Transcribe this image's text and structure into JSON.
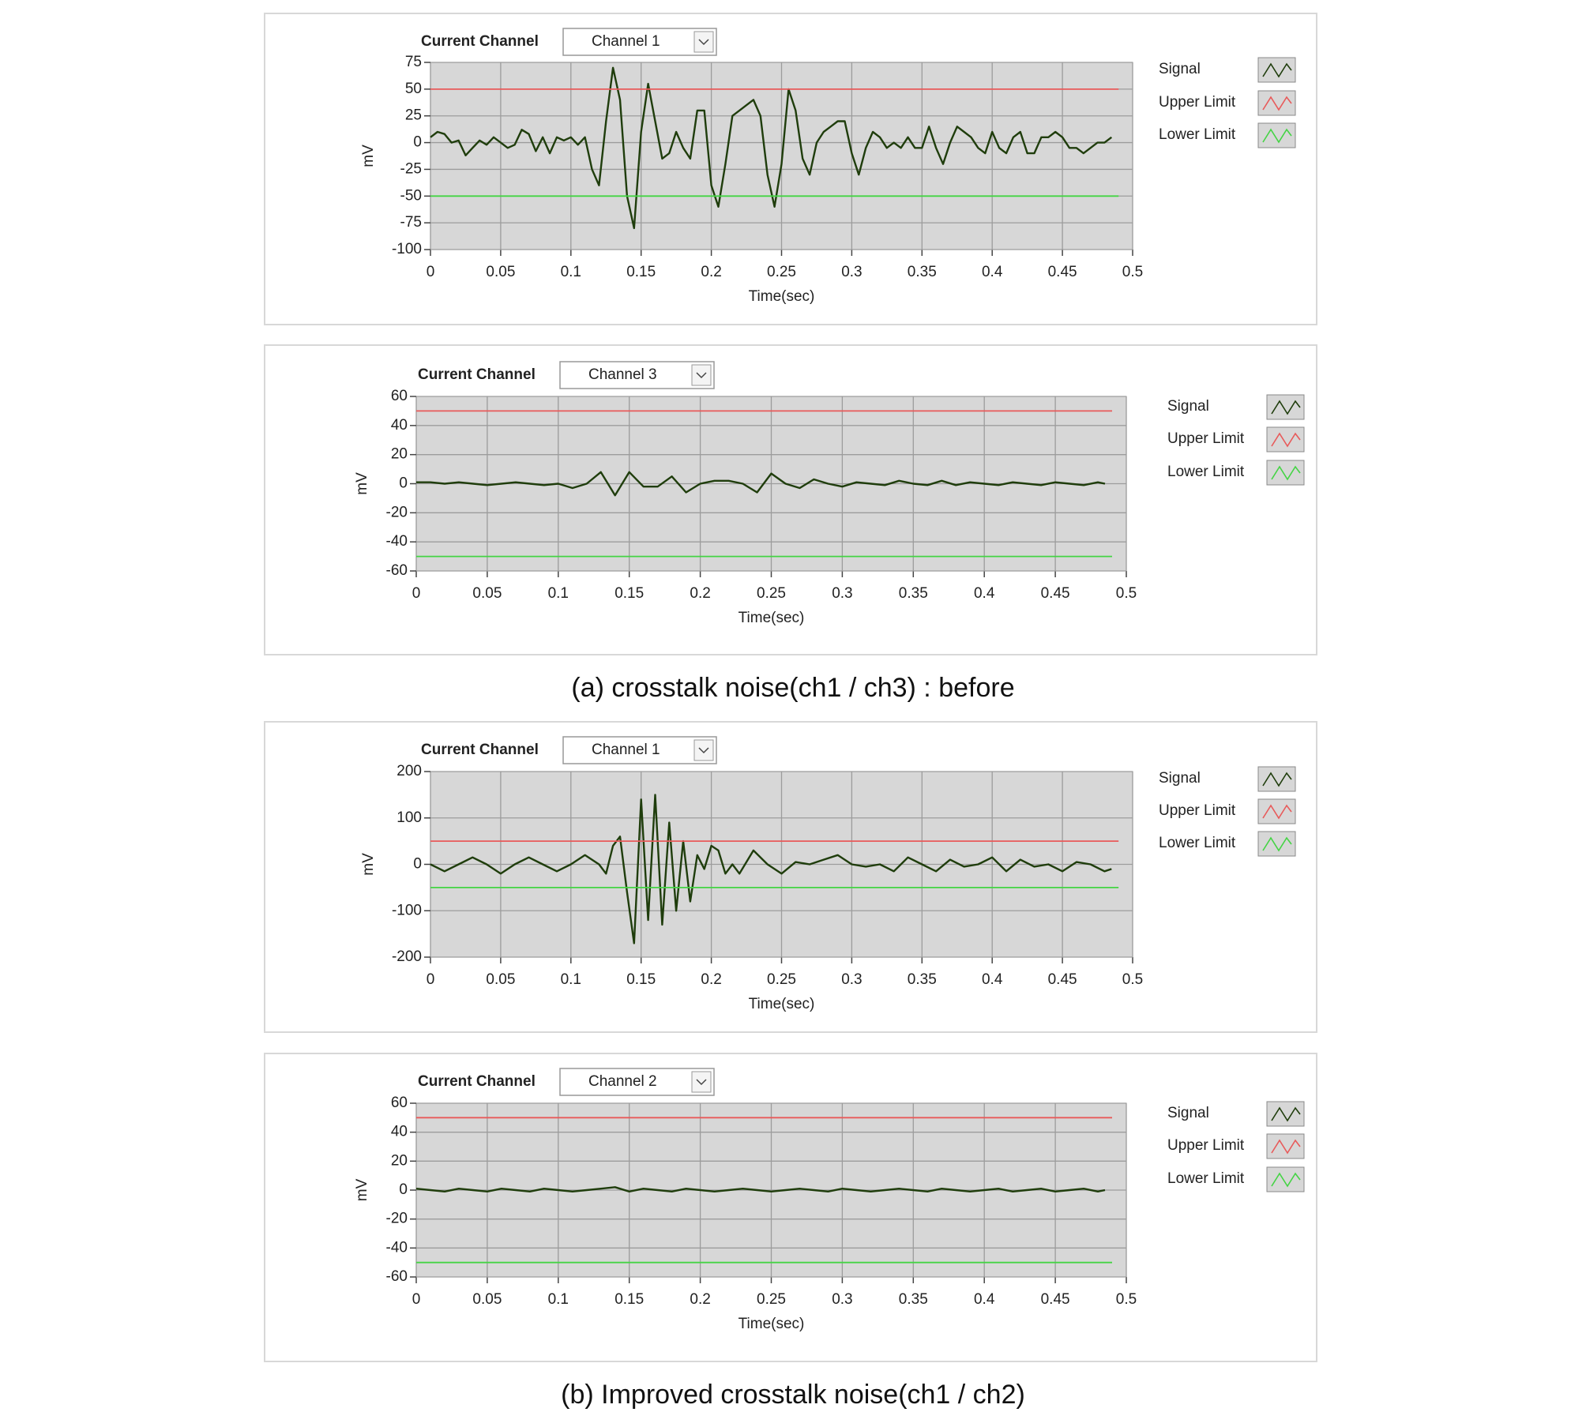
{
  "chart_data": [
    {
      "type": "line",
      "control_label": "Current Channel",
      "channel": "Channel 1",
      "ylabel": "mV",
      "xlabel": "Time(sec)",
      "xlim": [
        0,
        0.5
      ],
      "xticks": [
        0,
        0.05,
        0.1,
        0.15,
        0.2,
        0.25,
        0.3,
        0.35,
        0.4,
        0.45,
        0.5
      ],
      "ylim": [
        -100,
        75
      ],
      "yticks": [
        75,
        50,
        25,
        0,
        -25,
        -50,
        -75,
        -100
      ],
      "grid": true,
      "x": [
        0,
        0.005,
        0.01,
        0.015,
        0.02,
        0.025,
        0.03,
        0.035,
        0.04,
        0.045,
        0.05,
        0.055,
        0.06,
        0.065,
        0.07,
        0.075,
        0.08,
        0.085,
        0.09,
        0.095,
        0.1,
        0.105,
        0.11,
        0.115,
        0.12,
        0.125,
        0.13,
        0.135,
        0.14,
        0.145,
        0.15,
        0.155,
        0.16,
        0.165,
        0.17,
        0.175,
        0.18,
        0.185,
        0.19,
        0.195,
        0.2,
        0.205,
        0.21,
        0.215,
        0.22,
        0.225,
        0.23,
        0.235,
        0.24,
        0.245,
        0.25,
        0.255,
        0.26,
        0.265,
        0.27,
        0.275,
        0.28,
        0.285,
        0.29,
        0.295,
        0.3,
        0.305,
        0.31,
        0.315,
        0.32,
        0.325,
        0.33,
        0.335,
        0.34,
        0.345,
        0.35,
        0.355,
        0.36,
        0.365,
        0.37,
        0.375,
        0.38,
        0.385,
        0.39,
        0.395,
        0.4,
        0.405,
        0.41,
        0.415,
        0.42,
        0.425,
        0.43,
        0.435,
        0.44,
        0.445,
        0.45,
        0.455,
        0.46,
        0.465,
        0.47,
        0.475,
        0.48,
        0.485
      ],
      "series": [
        {
          "name": "Signal",
          "color": "#1f3d0c",
          "values": [
            5,
            10,
            8,
            0,
            2,
            -12,
            -5,
            2,
            -2,
            5,
            0,
            -5,
            -2,
            12,
            8,
            -8,
            5,
            -10,
            5,
            2,
            5,
            -2,
            5,
            -25,
            -40,
            20,
            70,
            40,
            -50,
            -80,
            10,
            55,
            20,
            -15,
            -10,
            10,
            -5,
            -15,
            30,
            30,
            -40,
            -60,
            -20,
            25,
            30,
            35,
            40,
            25,
            -30,
            -60,
            -20,
            50,
            30,
            -15,
            -30,
            0,
            10,
            15,
            20,
            20,
            -10,
            -30,
            -5,
            10,
            5,
            -5,
            0,
            -5,
            5,
            -5,
            -5,
            15,
            -5,
            -20,
            0,
            15,
            10,
            5,
            -5,
            -10,
            10,
            -5,
            -10,
            5,
            10,
            -10,
            -10,
            5,
            5,
            10,
            5,
            -5,
            -5,
            -10,
            -5,
            0,
            0,
            5
          ]
        },
        {
          "name": "Upper Limit",
          "color": "#e85a5a",
          "x": [
            0,
            0.49
          ],
          "values": [
            50,
            50
          ]
        },
        {
          "name": "Lower Limit",
          "color": "#44d444",
          "x": [
            0,
            0.49
          ],
          "values": [
            -50,
            -50
          ]
        }
      ]
    },
    {
      "type": "line",
      "control_label": "Current Channel",
      "channel": "Channel 3",
      "ylabel": "mV",
      "xlabel": "Time(sec)",
      "xlim": [
        0,
        0.5
      ],
      "xticks": [
        0,
        0.05,
        0.1,
        0.15,
        0.2,
        0.25,
        0.3,
        0.35,
        0.4,
        0.45,
        0.5
      ],
      "ylim": [
        -60,
        60
      ],
      "yticks": [
        60,
        40,
        20,
        0,
        -20,
        -40,
        -60
      ],
      "grid": true,
      "x": [
        0,
        0.01,
        0.02,
        0.03,
        0.04,
        0.05,
        0.06,
        0.07,
        0.08,
        0.09,
        0.1,
        0.11,
        0.12,
        0.13,
        0.14,
        0.15,
        0.16,
        0.17,
        0.18,
        0.19,
        0.2,
        0.21,
        0.22,
        0.23,
        0.24,
        0.25,
        0.26,
        0.27,
        0.28,
        0.29,
        0.3,
        0.31,
        0.32,
        0.33,
        0.34,
        0.35,
        0.36,
        0.37,
        0.38,
        0.39,
        0.4,
        0.41,
        0.42,
        0.43,
        0.44,
        0.45,
        0.46,
        0.47,
        0.48,
        0.485
      ],
      "series": [
        {
          "name": "Signal",
          "color": "#1f3d0c",
          "values": [
            1,
            1,
            0,
            1,
            0,
            -1,
            0,
            1,
            0,
            -1,
            0,
            -3,
            0,
            8,
            -8,
            8,
            -2,
            -2,
            5,
            -6,
            0,
            2,
            2,
            0,
            -6,
            7,
            0,
            -3,
            3,
            0,
            -2,
            1,
            0,
            -1,
            2,
            0,
            -1,
            2,
            -1,
            1,
            0,
            -1,
            1,
            0,
            -1,
            1,
            0,
            -1,
            1,
            0
          ]
        },
        {
          "name": "Upper Limit",
          "color": "#e85a5a",
          "x": [
            0,
            0.49
          ],
          "values": [
            50,
            50
          ]
        },
        {
          "name": "Lower Limit",
          "color": "#44d444",
          "x": [
            0,
            0.49
          ],
          "values": [
            -50,
            -50
          ]
        }
      ]
    },
    {
      "type": "line",
      "control_label": "Current Channel",
      "channel": "Channel 1",
      "ylabel": "mV",
      "xlabel": "Time(sec)",
      "xlim": [
        0,
        0.5
      ],
      "xticks": [
        0,
        0.05,
        0.1,
        0.15,
        0.2,
        0.25,
        0.3,
        0.35,
        0.4,
        0.45,
        0.5
      ],
      "ylim": [
        -200,
        200
      ],
      "yticks": [
        200,
        100,
        0,
        -100,
        -200
      ],
      "grid": true,
      "x": [
        0,
        0.01,
        0.02,
        0.03,
        0.04,
        0.05,
        0.06,
        0.07,
        0.08,
        0.09,
        0.1,
        0.11,
        0.12,
        0.125,
        0.13,
        0.135,
        0.14,
        0.145,
        0.15,
        0.155,
        0.16,
        0.165,
        0.17,
        0.175,
        0.18,
        0.185,
        0.19,
        0.195,
        0.2,
        0.205,
        0.21,
        0.215,
        0.22,
        0.23,
        0.24,
        0.25,
        0.26,
        0.27,
        0.28,
        0.29,
        0.3,
        0.31,
        0.32,
        0.33,
        0.34,
        0.35,
        0.36,
        0.37,
        0.38,
        0.39,
        0.4,
        0.41,
        0.42,
        0.43,
        0.44,
        0.45,
        0.46,
        0.47,
        0.48,
        0.485
      ],
      "series": [
        {
          "name": "Signal",
          "color": "#1f3d0c",
          "values": [
            0,
            -15,
            0,
            15,
            0,
            -20,
            0,
            15,
            0,
            -15,
            0,
            20,
            0,
            -20,
            40,
            60,
            -60,
            -170,
            140,
            -120,
            150,
            -130,
            90,
            -100,
            50,
            -80,
            20,
            -10,
            40,
            30,
            -20,
            0,
            -20,
            30,
            0,
            -20,
            5,
            0,
            10,
            20,
            0,
            -5,
            0,
            -15,
            15,
            0,
            -15,
            10,
            -5,
            0,
            15,
            -15,
            10,
            -5,
            0,
            -15,
            5,
            0,
            -15,
            -10
          ]
        },
        {
          "name": "Upper Limit",
          "color": "#e85a5a",
          "x": [
            0,
            0.49
          ],
          "values": [
            50,
            50
          ]
        },
        {
          "name": "Lower Limit",
          "color": "#44d444",
          "x": [
            0,
            0.49
          ],
          "values": [
            -50,
            -50
          ]
        }
      ]
    },
    {
      "type": "line",
      "control_label": "Current Channel",
      "channel": "Channel 2",
      "ylabel": "mV",
      "xlabel": "Time(sec)",
      "xlim": [
        0,
        0.5
      ],
      "xticks": [
        0,
        0.05,
        0.1,
        0.15,
        0.2,
        0.25,
        0.3,
        0.35,
        0.4,
        0.45,
        0.5
      ],
      "ylim": [
        -60,
        60
      ],
      "yticks": [
        60,
        40,
        20,
        0,
        -20,
        -40,
        -60
      ],
      "grid": true,
      "x": [
        0,
        0.01,
        0.02,
        0.03,
        0.04,
        0.05,
        0.06,
        0.07,
        0.08,
        0.09,
        0.1,
        0.11,
        0.12,
        0.13,
        0.14,
        0.15,
        0.16,
        0.17,
        0.18,
        0.19,
        0.2,
        0.21,
        0.22,
        0.23,
        0.24,
        0.25,
        0.26,
        0.27,
        0.28,
        0.29,
        0.3,
        0.31,
        0.32,
        0.33,
        0.34,
        0.35,
        0.36,
        0.37,
        0.38,
        0.39,
        0.4,
        0.41,
        0.42,
        0.43,
        0.44,
        0.45,
        0.46,
        0.47,
        0.48,
        0.485
      ],
      "series": [
        {
          "name": "Signal",
          "color": "#1f3d0c",
          "values": [
            1,
            0,
            -1,
            1,
            0,
            -1,
            1,
            0,
            -1,
            1,
            0,
            -1,
            0,
            1,
            2,
            -1,
            1,
            0,
            -1,
            1,
            0,
            -1,
            0,
            1,
            0,
            -1,
            0,
            1,
            0,
            -1,
            1,
            0,
            -1,
            0,
            1,
            0,
            -1,
            1,
            0,
            -1,
            0,
            1,
            -1,
            0,
            1,
            -1,
            0,
            1,
            -1,
            0
          ]
        },
        {
          "name": "Upper Limit",
          "color": "#e85a5a",
          "x": [
            0,
            0.49
          ],
          "values": [
            50,
            50
          ]
        },
        {
          "name": "Lower Limit",
          "color": "#44d444",
          "x": [
            0,
            0.49
          ],
          "values": [
            -50,
            -50
          ]
        }
      ]
    }
  ],
  "captions": [
    "(a) crosstalk noise(ch1 / ch3) : before",
    "(b) Improved crosstalk noise(ch1 / ch2)"
  ]
}
